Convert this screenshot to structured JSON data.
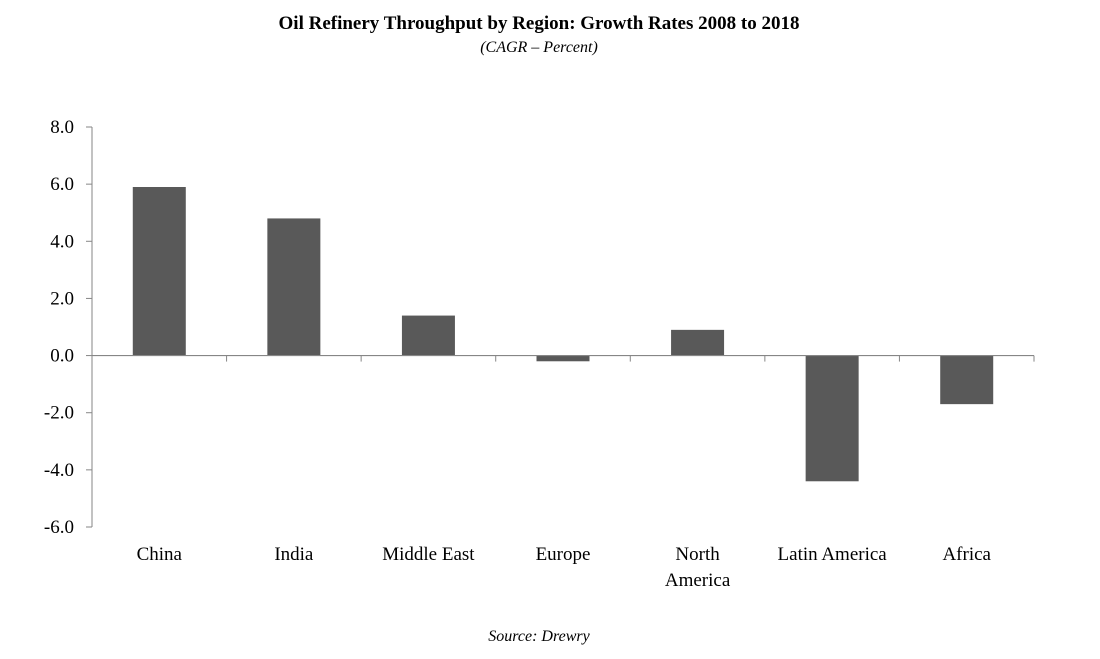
{
  "chart_data": {
    "type": "bar",
    "title": "Oil Refinery Throughput by Region: Growth Rates 2008 to 2018",
    "subtitle": "(CAGR – Percent)",
    "source": "Source: Drewry",
    "categories": [
      "China",
      "India",
      "Middle East",
      "Europe",
      "North America",
      "Latin America",
      "Africa"
    ],
    "category_lines": [
      [
        "China"
      ],
      [
        "India"
      ],
      [
        "Middle East"
      ],
      [
        "Europe"
      ],
      [
        "North",
        "America"
      ],
      [
        "Latin America"
      ],
      [
        "Africa"
      ]
    ],
    "values": [
      5.9,
      4.8,
      1.4,
      -0.2,
      0.9,
      -4.4,
      -1.7
    ],
    "ylim": [
      -6,
      8
    ],
    "yticks": [
      8,
      6,
      4,
      2,
      0,
      -2,
      -4,
      -6
    ],
    "ytick_labels": [
      "8.0",
      "6.0",
      "4.0",
      "2.0",
      "0.0",
      "-2.0",
      "-4.0",
      "-6.0"
    ],
    "grid": false,
    "bar_color": "#595959",
    "axis_color": "#868686"
  }
}
